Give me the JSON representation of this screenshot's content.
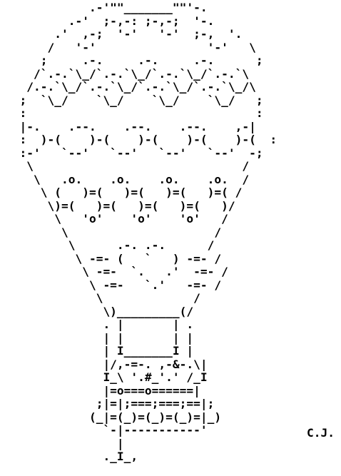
{
  "art": {
    "lines": [
      "            . - ' \" \" ' _ _ _ _ _ _ _ \" \" ' - .",
      "",
      "",
      "",
      "",
      "",
      "",
      "",
      "",
      "",
      "",
      "",
      "",
      "",
      "",
      "",
      "",
      "",
      "",
      "",
      "",
      "",
      "",
      "",
      "",
      "",
      "",
      "",
      "",
      "",
      "",
      "",
      "",
      "",
      ""
    ],
    "text": "            .-'\"\"_______\"\"'-.\n         .-'  ;-,-: ;-,-;  '-.\n       .'  ,-;  '-'   '-'  ;-,  '.\n      /   '-'                '-'   \\\n     ;     .-.     .-.     .-.      ;\n    /`.-.`\\_/`.-.`\\_/`.-.`\\_/`.-.`\\\n   /.-.`\\_/`.-.`\\_/`.-.`\\_/`.-.`\\_/\\\n  ;  `\\_/    `\\_/    `\\_/    `\\_/   ;\n  :                                 :\n  |-.    .--.    .--.    .--.    ,-|\n  :  )-(    )-(    )-(    )-(    )-(  :\n  :-'   `--'   `--'   `--'   `--'  -;\n   \\                              /\n    \\   .o.    .o.    .o.    .o.  /\n     \\ (   )=(   )=(   )=(   )=( /\n      \\)=(   )=(   )=(   )=(   )/\n       \\   'o'    'o'    'o'   /\n        \\                     /\n         \\      .-. .-.      /\n          \\ -=- (   `   ) -=- /\n           \\ -=-  `.   .'  -=- /\n            \\ -=-   `.'   -=- /\n             \\             /\n              \\)_________(/\n              . |       | .\n              | |       | |\n              | I_______I |\n              |/,-=-. ,-&-.\\|\n              I_\\ '.#_'.' /_I\n              |=o===o======|\n             ;|=|;===;===;==|;\n            (_|=(_)=(_)=(_)=|_)\n              `-|-----------'\n                |\n              ._I_,",
    "signature": "C.J."
  }
}
